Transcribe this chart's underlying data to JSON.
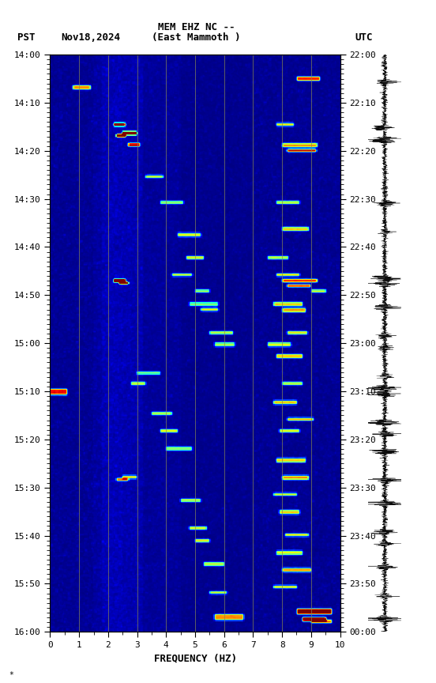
{
  "title_line1": "MEM EHZ NC --",
  "title_line2": "(East Mammoth )",
  "left_label": "PST",
  "date_label": "Nov18,2024",
  "right_label": "UTC",
  "xlabel": "FREQUENCY (HZ)",
  "freq_min": 0,
  "freq_max": 10,
  "pst_ticks": [
    "14:00",
    "14:10",
    "14:20",
    "14:30",
    "14:40",
    "14:50",
    "15:00",
    "15:10",
    "15:20",
    "15:30",
    "15:40",
    "15:50",
    "16:00"
  ],
  "utc_ticks": [
    "22:00",
    "22:10",
    "22:20",
    "22:30",
    "22:40",
    "22:50",
    "23:00",
    "23:10",
    "23:20",
    "23:30",
    "23:40",
    "23:50",
    "00:00"
  ],
  "freq_ticks": [
    0,
    1,
    2,
    3,
    4,
    5,
    6,
    7,
    8,
    9,
    10
  ],
  "grid_line_color": "#888855",
  "background_color": "#ffffff",
  "waveform_color": "#000000",
  "seed": 42,
  "n_time": 600,
  "n_freq": 300,
  "vmax": 8.0
}
